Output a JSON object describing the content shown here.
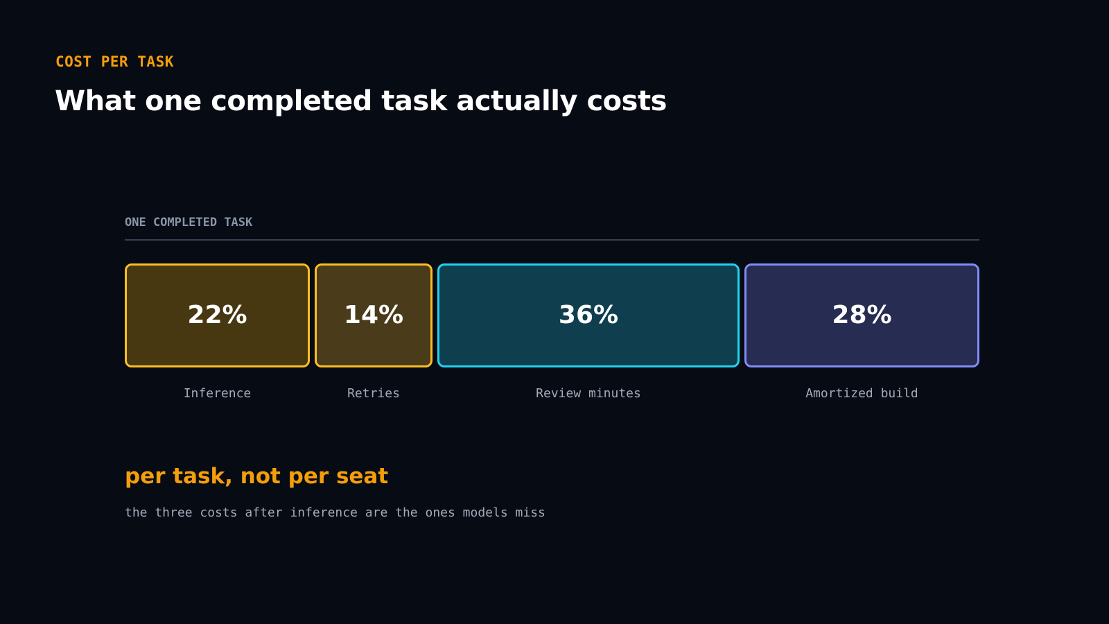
{
  "header": {
    "eyebrow": "COST PER TASK",
    "title": "What one completed task actually costs"
  },
  "chart_data": {
    "type": "bar",
    "title": "ONE COMPLETED TASK",
    "orientation": "stacked-horizontal",
    "unit": "%",
    "categories": [
      "Inference",
      "Retries",
      "Review minutes",
      "Amortized build"
    ],
    "values": [
      22,
      14,
      36,
      28
    ],
    "labels": [
      "22%",
      "14%",
      "36%",
      "28%"
    ],
    "colors": [
      {
        "border": "#fbbf24",
        "fill": "#483812"
      },
      {
        "border": "#fbbf24",
        "fill": "#4a3b1b"
      },
      {
        "border": "#22d3ee",
        "fill": "#0f3f4f"
      },
      {
        "border": "#818cf8",
        "fill": "#272c52"
      }
    ],
    "legend": "none",
    "grid": false
  },
  "callout": {
    "title": "per task, not per seat",
    "subtitle": "the three costs after inference are the ones models miss"
  }
}
